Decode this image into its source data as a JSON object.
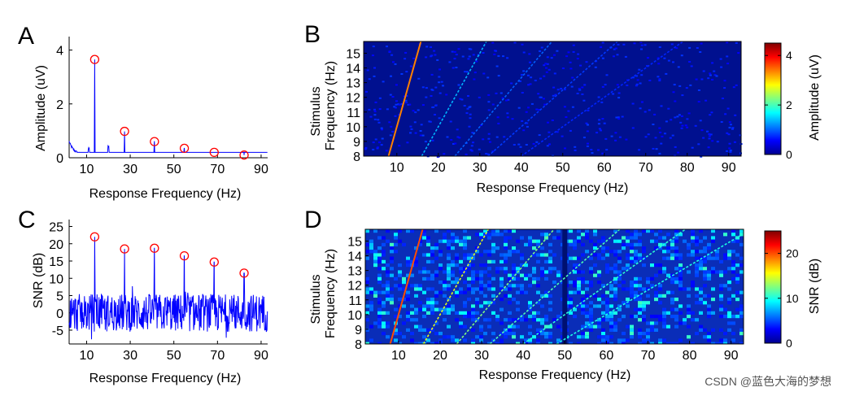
{
  "chart_data": [
    {
      "panel": "A",
      "type": "line",
      "xlabel": "Response Frequency (Hz)",
      "ylabel": "Amplitude (uV)",
      "xlim": [
        2,
        93
      ],
      "ylim": [
        0,
        4.5
      ],
      "xticks": [
        10,
        30,
        50,
        70,
        90
      ],
      "yticks": [
        0,
        2,
        4
      ],
      "peaks": {
        "x": [
          13.7,
          27.4,
          41.1,
          54.8,
          68.5,
          82.2
        ],
        "y": [
          3.65,
          0.98,
          0.6,
          0.35,
          0.2,
          0.1
        ]
      },
      "line_color": "#0000ff",
      "marker_color": "#ff0000"
    },
    {
      "panel": "B",
      "type": "heatmap",
      "xlabel": "Response Frequency (Hz)",
      "ylabel_lines": [
        "Stimulus",
        "Frequency (Hz)"
      ],
      "xticks": [
        10,
        20,
        30,
        40,
        50,
        60,
        70,
        80,
        90
      ],
      "yticks": [
        8,
        9,
        10,
        11,
        12,
        13,
        14,
        15
      ],
      "xlim": [
        2,
        93
      ],
      "ylim": [
        8,
        15.8
      ],
      "colorbar": {
        "label": "Amplitude (uV)",
        "ticks": [
          0,
          2,
          4
        ],
        "range": [
          0,
          4.5
        ]
      }
    },
    {
      "panel": "C",
      "type": "line",
      "xlabel": "Response Frequency (Hz)",
      "ylabel": "SNR (dB)",
      "xlim": [
        2,
        93
      ],
      "ylim": [
        -9,
        27
      ],
      "xticks": [
        10,
        30,
        50,
        70,
        90
      ],
      "yticks": [
        -5,
        0,
        5,
        10,
        15,
        20,
        25
      ],
      "peaks": {
        "x": [
          13.7,
          27.4,
          41.1,
          54.8,
          68.5,
          82.2
        ],
        "y": [
          22,
          18.5,
          18.7,
          16.5,
          14.7,
          11.5
        ]
      },
      "line_color": "#0000ff",
      "marker_color": "#ff0000"
    },
    {
      "panel": "D",
      "type": "heatmap",
      "xlabel": "Response Frequency (Hz)",
      "ylabel_lines": [
        "Stimulus",
        "Frequency (Hz)"
      ],
      "xticks": [
        10,
        20,
        30,
        40,
        50,
        60,
        70,
        80,
        90
      ],
      "yticks": [
        8,
        9,
        10,
        11,
        12,
        13,
        14,
        15
      ],
      "xlim": [
        2,
        93
      ],
      "ylim": [
        8,
        15.8
      ],
      "colorbar": {
        "label": "SNR (dB)",
        "ticks": [
          0,
          10,
          20
        ],
        "range": [
          0,
          25
        ]
      }
    }
  ],
  "panel_letters": [
    "A",
    "B",
    "C",
    "D"
  ],
  "watermark": "CSDN @蓝色大海的梦想"
}
